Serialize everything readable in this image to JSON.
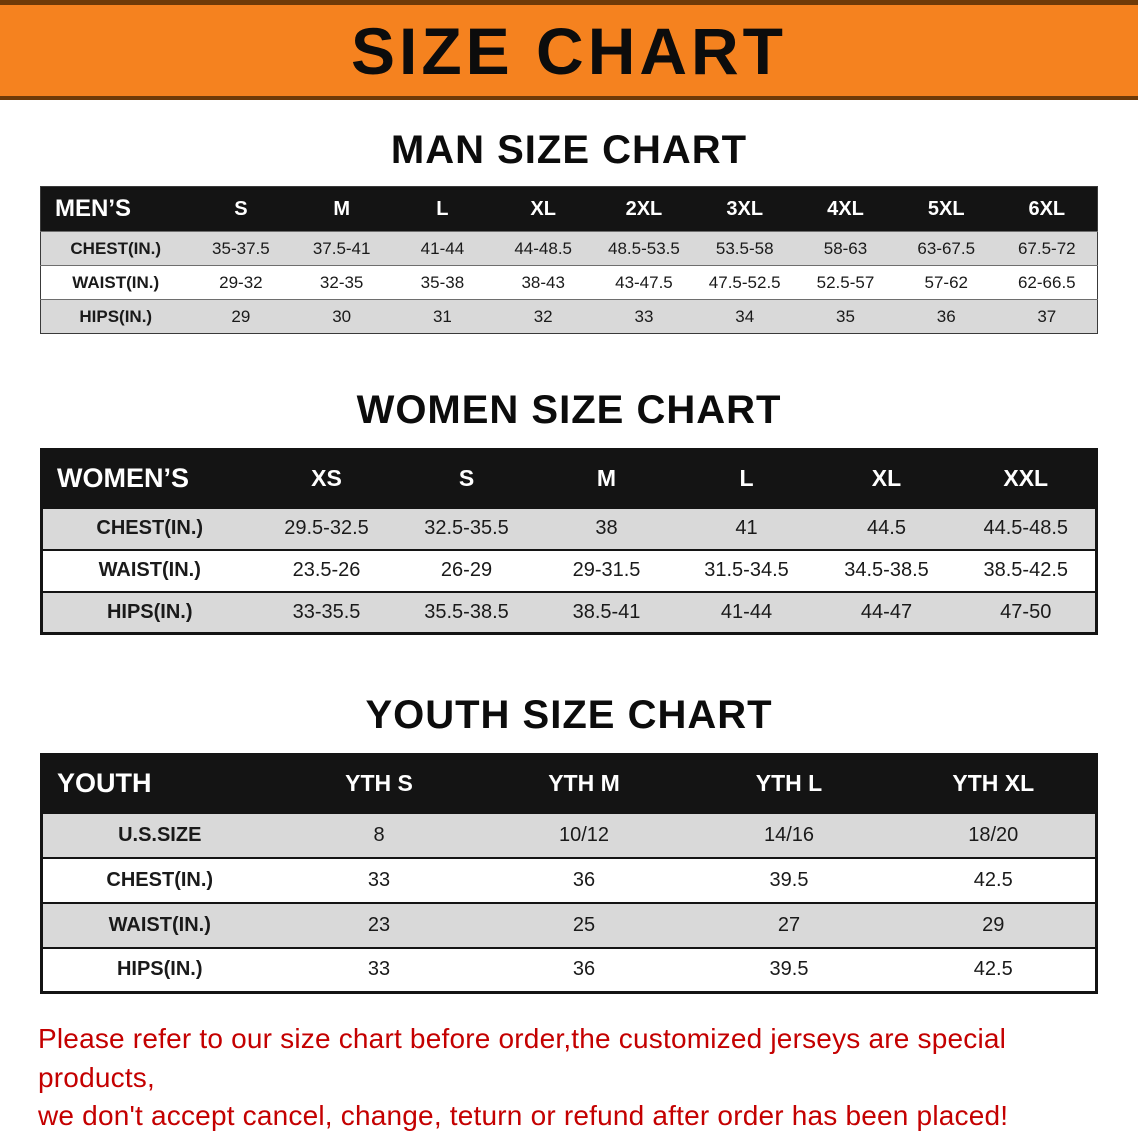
{
  "banner": {
    "title": "SIZE CHART"
  },
  "sections": [
    {
      "heading": "MAN SIZE CHART",
      "table": {
        "label": "MEN’S",
        "sizes": [
          "S",
          "M",
          "L",
          "XL",
          "2XL",
          "3XL",
          "4XL",
          "5XL",
          "6XL"
        ],
        "rows": [
          {
            "label": "CHEST(IN.)",
            "values": [
              "35-37.5",
              "37.5-41",
              "41-44",
              "44-48.5",
              "48.5-53.5",
              "53.5-58",
              "58-63",
              "63-67.5",
              "67.5-72"
            ]
          },
          {
            "label": "WAIST(IN.)",
            "values": [
              "29-32",
              "32-35",
              "35-38",
              "38-43",
              "43-47.5",
              "47.5-52.5",
              "52.5-57",
              "57-62",
              "62-66.5"
            ]
          },
          {
            "label": "HIPS(IN.)",
            "values": [
              "29",
              "30",
              "31",
              "32",
              "33",
              "34",
              "35",
              "36",
              "37"
            ]
          }
        ]
      }
    },
    {
      "heading": "WOMEN SIZE CHART",
      "table": {
        "label": "WOMEN’S",
        "sizes": [
          "XS",
          "S",
          "M",
          "L",
          "XL",
          "XXL"
        ],
        "rows": [
          {
            "label": "CHEST(IN.)",
            "values": [
              "29.5-32.5",
              "32.5-35.5",
              "38",
              "41",
              "44.5",
              "44.5-48.5"
            ]
          },
          {
            "label": "WAIST(IN.)",
            "values": [
              "23.5-26",
              "26-29",
              "29-31.5",
              "31.5-34.5",
              "34.5-38.5",
              "38.5-42.5"
            ]
          },
          {
            "label": "HIPS(IN.)",
            "values": [
              "33-35.5",
              "35.5-38.5",
              "38.5-41",
              "41-44",
              "44-47",
              "47-50"
            ]
          }
        ]
      }
    },
    {
      "heading": "YOUTH SIZE CHART",
      "table": {
        "label": "YOUTH",
        "sizes": [
          "YTH S",
          "YTH M",
          "YTH L",
          "YTH XL"
        ],
        "rows": [
          {
            "label": "U.S.SIZE",
            "values": [
              "8",
              "10/12",
              "14/16",
              "18/20"
            ]
          },
          {
            "label": "CHEST(IN.)",
            "values": [
              "33",
              "36",
              "39.5",
              "42.5"
            ]
          },
          {
            "label": "WAIST(IN.)",
            "values": [
              "23",
              "25",
              "27",
              "29"
            ]
          },
          {
            "label": "HIPS(IN.)",
            "values": [
              "33",
              "36",
              "39.5",
              "42.5"
            ]
          }
        ]
      }
    }
  ],
  "footer": {
    "line1": "Please refer to our size chart before order,the customized jerseys are special products,",
    "line2": "we don't accept cancel, change, teturn or refund after order has been placed!"
  },
  "colors": {
    "banner_orange": "#f5821f",
    "header_black": "#141414",
    "row_gray": "#d9d9d9",
    "footer_red": "#c40000"
  }
}
